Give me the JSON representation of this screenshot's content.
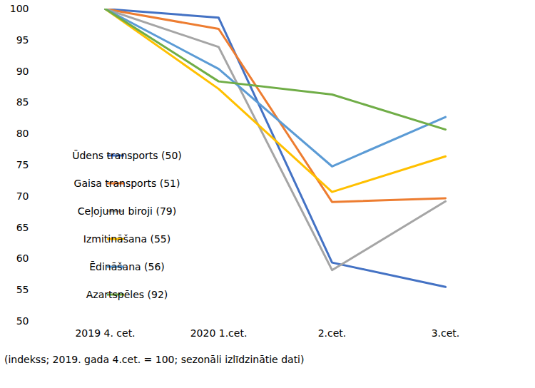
{
  "chart_data": {
    "type": "line",
    "caption": "(indekss; 2019. gada 4.cet. = 100; sezonāli izlīdzinātie dati)",
    "categories": [
      "2019 4. cet.",
      "2020 1.cet.",
      "2.cet.",
      "3.cet."
    ],
    "series": [
      {
        "name": "Ūdens transports (50)",
        "color": "#4472c4",
        "values": [
          100,
          98.6,
          59.4,
          55.5
        ]
      },
      {
        "name": "Gaisa transports (51)",
        "color": "#ed7d31",
        "values": [
          100,
          96.8,
          69.1,
          69.7
        ]
      },
      {
        "name": "Ceļojumu biroji (79)",
        "color": "#a5a5a5",
        "values": [
          100,
          93.9,
          58.2,
          69.2
        ]
      },
      {
        "name": "Izmitināšana (55)",
        "color": "#ffc000",
        "values": [
          100,
          87.2,
          70.7,
          76.4
        ]
      },
      {
        "name": "Ēdināšana (56)",
        "color": "#5b9bd5",
        "values": [
          100,
          90.4,
          74.8,
          82.7
        ]
      },
      {
        "name": "Azartspēles (92)",
        "color": "#70ad47",
        "values": [
          100,
          88.4,
          86.3,
          80.7
        ]
      }
    ],
    "ylim": [
      50,
      100
    ],
    "yticks": [
      50,
      55,
      60,
      65,
      70,
      75,
      80,
      85,
      90,
      95,
      100
    ],
    "grid": false,
    "legend": "left"
  }
}
